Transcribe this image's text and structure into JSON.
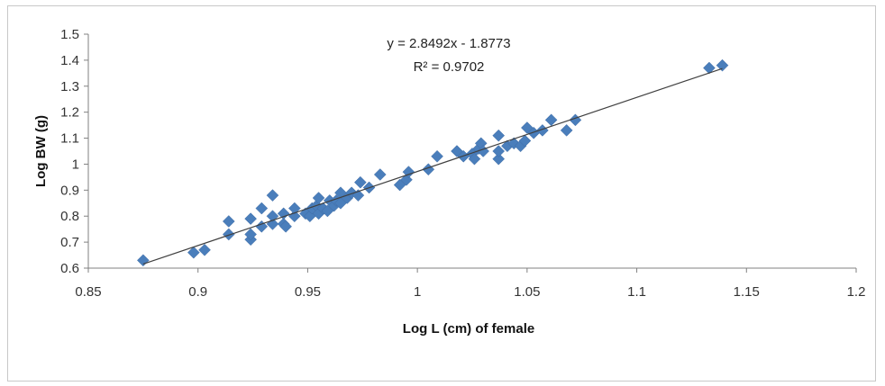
{
  "chart_data": {
    "type": "scatter",
    "xlabel": "Log L (cm) of female",
    "ylabel": "Log BW (g)",
    "xlim": [
      0.85,
      1.2
    ],
    "ylim": [
      0.6,
      1.5
    ],
    "x_ticks": [
      "0.85",
      "0.9",
      "0.95",
      "1",
      "1.05",
      "1.1",
      "1.15",
      "1.2"
    ],
    "y_ticks": [
      "0.6",
      "0.7",
      "0.8",
      "0.9",
      "1",
      "1.1",
      "1.2",
      "1.3",
      "1.4",
      "1.5"
    ],
    "grid": false,
    "legend": "none",
    "marker": "diamond",
    "marker_color": "#4a7ebb",
    "trendline": {
      "type": "linear",
      "slope": 2.8492,
      "intercept": -1.8773,
      "color": "#404040"
    },
    "annotations": [
      "y = 2.8492x - 1.8773",
      "R² = 0.9702"
    ],
    "points": [
      [
        0.875,
        0.63
      ],
      [
        0.898,
        0.66
      ],
      [
        0.903,
        0.67
      ],
      [
        0.914,
        0.73
      ],
      [
        0.914,
        0.78
      ],
      [
        0.924,
        0.71
      ],
      [
        0.924,
        0.73
      ],
      [
        0.924,
        0.79
      ],
      [
        0.929,
        0.76
      ],
      [
        0.929,
        0.83
      ],
      [
        0.934,
        0.77
      ],
      [
        0.934,
        0.8
      ],
      [
        0.934,
        0.88
      ],
      [
        0.939,
        0.77
      ],
      [
        0.939,
        0.81
      ],
      [
        0.94,
        0.76
      ],
      [
        0.944,
        0.8
      ],
      [
        0.944,
        0.83
      ],
      [
        0.949,
        0.81
      ],
      [
        0.951,
        0.8
      ],
      [
        0.952,
        0.83
      ],
      [
        0.954,
        0.84
      ],
      [
        0.955,
        0.87
      ],
      [
        0.955,
        0.81
      ],
      [
        0.957,
        0.83
      ],
      [
        0.959,
        0.82
      ],
      [
        0.96,
        0.86
      ],
      [
        0.962,
        0.84
      ],
      [
        0.963,
        0.86
      ],
      [
        0.965,
        0.85
      ],
      [
        0.965,
        0.89
      ],
      [
        0.968,
        0.87
      ],
      [
        0.97,
        0.89
      ],
      [
        0.973,
        0.88
      ],
      [
        0.974,
        0.93
      ],
      [
        0.978,
        0.91
      ],
      [
        0.983,
        0.96
      ],
      [
        0.992,
        0.92
      ],
      [
        0.995,
        0.94
      ],
      [
        0.996,
        0.97
      ],
      [
        1.005,
        0.98
      ],
      [
        1.009,
        1.03
      ],
      [
        1.018,
        1.05
      ],
      [
        1.021,
        1.03
      ],
      [
        1.025,
        1.04
      ],
      [
        1.026,
        1.02
      ],
      [
        1.028,
        1.06
      ],
      [
        1.029,
        1.08
      ],
      [
        1.03,
        1.05
      ],
      [
        1.037,
        1.02
      ],
      [
        1.037,
        1.05
      ],
      [
        1.037,
        1.11
      ],
      [
        1.041,
        1.07
      ],
      [
        1.044,
        1.08
      ],
      [
        1.047,
        1.07
      ],
      [
        1.049,
        1.09
      ],
      [
        1.05,
        1.14
      ],
      [
        1.053,
        1.12
      ],
      [
        1.057,
        1.13
      ],
      [
        1.061,
        1.17
      ],
      [
        1.068,
        1.13
      ],
      [
        1.072,
        1.17
      ],
      [
        1.133,
        1.37
      ],
      [
        1.139,
        1.38
      ]
    ]
  }
}
